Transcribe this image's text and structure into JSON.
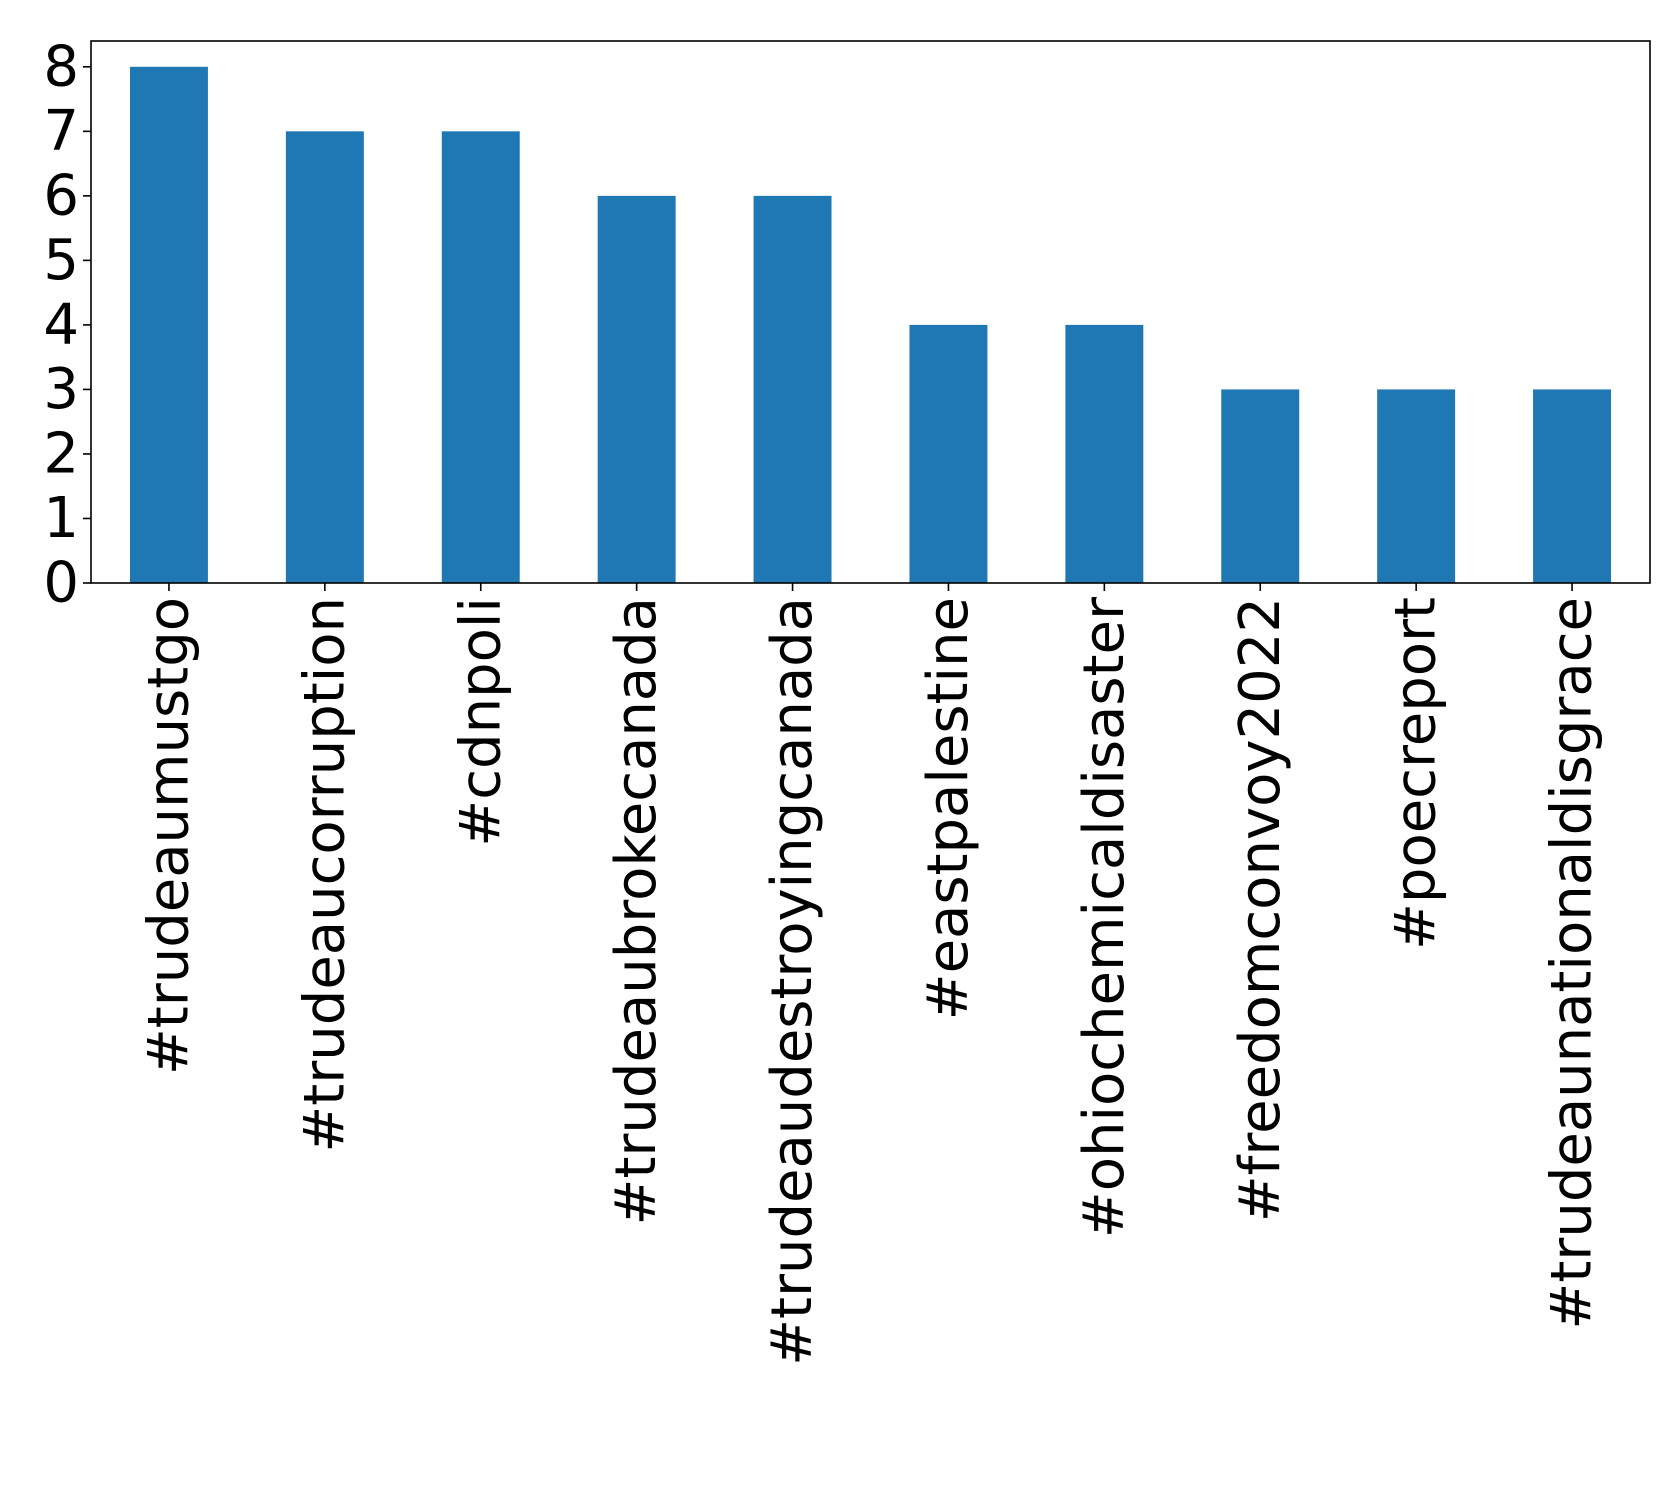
{
  "chart_data": {
    "type": "bar",
    "title": "",
    "xlabel": "",
    "ylabel": "",
    "categories": [
      "#trudeaumustgo",
      "#trudeaucorruption",
      "#cdnpoli",
      "#trudeaubrokecanada",
      "#trudeaudestroyingcanada",
      "#eastpalestine",
      "#ohiochemicaldisaster",
      "#freedomconvoy2022",
      "#poecreport",
      "#trudeaunationaldisgrace"
    ],
    "values": [
      8,
      7,
      7,
      6,
      6,
      4,
      4,
      3,
      3,
      3
    ],
    "ylim": [
      0,
      8.4
    ],
    "yticks": [
      "0",
      "1",
      "2",
      "3",
      "4",
      "5",
      "6",
      "7",
      "8"
    ],
    "grid": false,
    "legend": "none",
    "bar_color": "#1f77b4"
  }
}
